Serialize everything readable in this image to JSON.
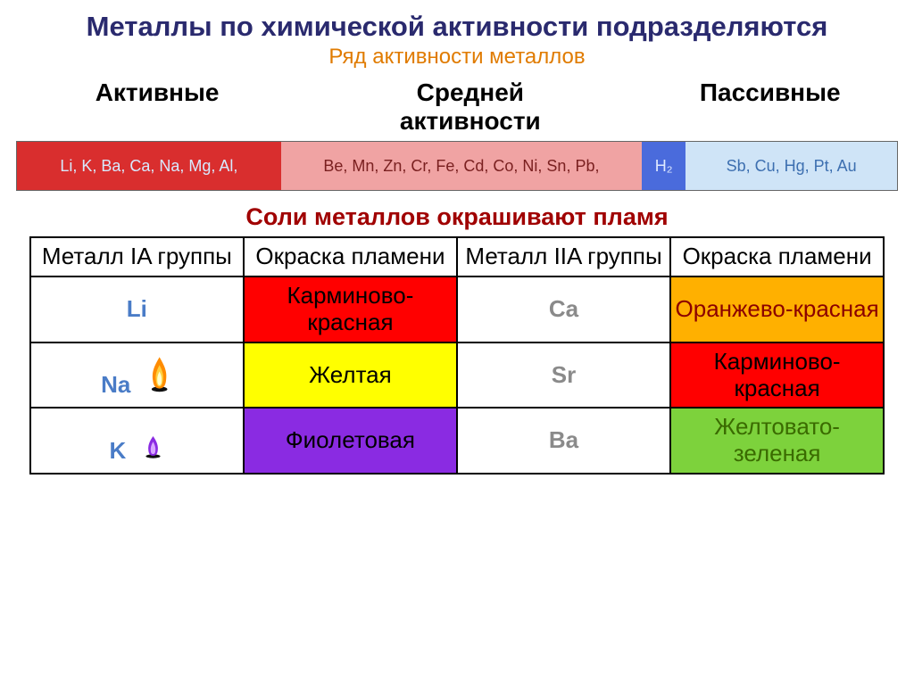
{
  "title": "Металлы по химической активности подразделяются",
  "subtitle": "Ряд активности металлов",
  "categories": {
    "active": {
      "label": "Активные"
    },
    "medium": {
      "label": "Средней\nактивности"
    },
    "passive": {
      "label": "Пассивные"
    }
  },
  "activity_bar": {
    "segments": {
      "active": {
        "text": "Li, K, Ba, Ca, Na, Mg, Al,",
        "bg": "#d92e2e",
        "fg": "#d7eaff"
      },
      "medium": {
        "text": "Be, Mn, Zn, Cr, Fe, Cd, Co, Ni, Sn, Pb,",
        "bg": "#f0a3a3",
        "fg": "#7a2020"
      },
      "h2": {
        "text": "H₂",
        "bg": "#4a6bdc",
        "fg": "#dfeaff"
      },
      "passive": {
        "text": "Sb, Cu, Hg, Pt, Au",
        "bg": "#cfe4f7",
        "fg": "#3d6fb0"
      }
    }
  },
  "salts_title": "Соли металлов окрашивают пламя",
  "flame_table": {
    "headers": {
      "col1": "Металл   IA группы",
      "col2": "Окраска пламени",
      "col3": "Металл  IIA группы",
      "col4": "Окраска пламени"
    },
    "rows": [
      {
        "m1": "Li",
        "m1_flame": null,
        "c2": {
          "text": "Карминово-красная",
          "bg": "#ff0000",
          "fg": "#000"
        },
        "m2": "Ca",
        "c4": {
          "text": "Оранжево-красная",
          "bg": "#ffb000",
          "fg": "#8b0000"
        }
      },
      {
        "m1": "Na",
        "m1_flame": "orange",
        "c2": {
          "text": "Желтая",
          "bg": "#ffff00",
          "fg": "#000"
        },
        "m2": "Sr",
        "c4": {
          "text": "Карминово-красная",
          "bg": "#ff0000",
          "fg": "#000"
        }
      },
      {
        "m1": "K",
        "m1_flame": "violet",
        "c2": {
          "text": "Фиолетовая",
          "bg": "#8a2be2",
          "fg": "#000"
        },
        "m2": "Ba",
        "c4": {
          "text": "Желтовато-зеленая",
          "bg": "#7dd23c",
          "fg": "#3a6b00"
        }
      }
    ]
  }
}
